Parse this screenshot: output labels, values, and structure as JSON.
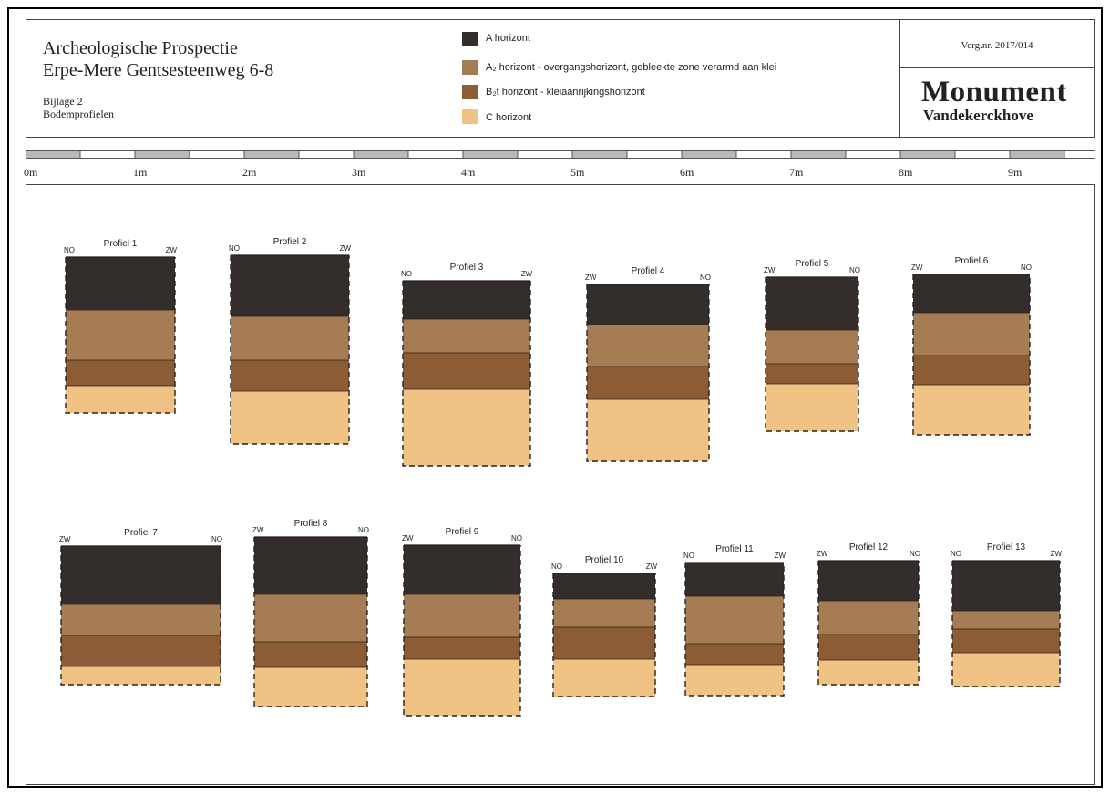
{
  "header": {
    "title_line1": "Archeologische Prospectie",
    "title_line2": "Erpe-Mere Gentsesteenweg 6-8",
    "bijlage": "Bijlage 2",
    "subtitle": "Bodemprofielen",
    "verg_nr": "Verg.nr. 2017/014",
    "logo_line1": "Monument",
    "logo_line2": "Vandekerckhove"
  },
  "legend": [
    {
      "label": "A horizont",
      "color": "#332e2c"
    },
    {
      "label": "A₂ horizont - overgangshorizont, gebleekte zone verarmd aan klei",
      "color": "#a67c55"
    },
    {
      "label": "B₂t horizont - kleiaanrijkingshorizont",
      "color": "#8b5c36"
    },
    {
      "label": "C horizont",
      "color": "#f0c283"
    }
  ],
  "scale_labels": [
    "0m",
    "1m",
    "2m",
    "3m",
    "4m",
    "5m",
    "6m",
    "7m",
    "8m",
    "9m"
  ],
  "profiles": [
    {
      "name": "Profiel 1",
      "left_label": "NO",
      "right_label": "ZW",
      "layers": [
        [
          "#332e2c",
          58
        ],
        [
          "#a67c55",
          55
        ],
        [
          "#8b5c36",
          28
        ],
        [
          "#f0c283",
          30
        ]
      ]
    },
    {
      "name": "Profiel 2",
      "left_label": "NO",
      "right_label": "ZW",
      "layers": [
        [
          "#332e2c",
          67
        ],
        [
          "#a67c55",
          48
        ],
        [
          "#8b5c36",
          34
        ],
        [
          "#f0c283",
          58
        ]
      ]
    },
    {
      "name": "Profiel 3",
      "left_label": "NO",
      "right_label": "ZW",
      "layers": [
        [
          "#332e2c",
          42
        ],
        [
          "#a67c55",
          37
        ],
        [
          "#8b5c36",
          40
        ],
        [
          "#f0c283",
          84
        ]
      ]
    },
    {
      "name": "Profiel 4",
      "left_label": "ZW",
      "right_label": "NO",
      "layers": [
        [
          "#332e2c",
          44
        ],
        [
          "#a67c55",
          46
        ],
        [
          "#8b5c36",
          36
        ],
        [
          "#f0c283",
          68
        ]
      ]
    },
    {
      "name": "Profiel 5",
      "left_label": "ZW",
      "right_label": "NO",
      "layers": [
        [
          "#332e2c",
          58
        ],
        [
          "#a67c55",
          37
        ],
        [
          "#8b5c36",
          22
        ],
        [
          "#f0c283",
          52
        ]
      ]
    },
    {
      "name": "Profiel 6",
      "left_label": "ZW",
      "right_label": "NO",
      "layers": [
        [
          "#332e2c",
          42
        ],
        [
          "#a67c55",
          47
        ],
        [
          "#8b5c36",
          32
        ],
        [
          "#f0c283",
          55
        ]
      ]
    },
    {
      "name": "Profiel 7",
      "left_label": "ZW",
      "right_label": "NO",
      "layers": [
        [
          "#332e2c",
          64
        ],
        [
          "#a67c55",
          34
        ],
        [
          "#8b5c36",
          34
        ],
        [
          "#f0c283",
          20
        ]
      ]
    },
    {
      "name": "Profiel 8",
      "left_label": "ZW",
      "right_label": "NO",
      "layers": [
        [
          "#332e2c",
          63
        ],
        [
          "#a67c55",
          52
        ],
        [
          "#8b5c36",
          28
        ],
        [
          "#f0c283",
          43
        ]
      ]
    },
    {
      "name": "Profiel 9",
      "left_label": "ZW",
      "right_label": "NO",
      "layers": [
        [
          "#332e2c",
          54
        ],
        [
          "#a67c55",
          47
        ],
        [
          "#8b5c36",
          24
        ],
        [
          "#f0c283",
          62
        ]
      ]
    },
    {
      "name": "Profiel 10",
      "left_label": "NO",
      "right_label": "ZW",
      "layers": [
        [
          "#332e2c",
          28
        ],
        [
          "#a67c55",
          31
        ],
        [
          "#8b5c36",
          35
        ],
        [
          "#f0c283",
          41
        ]
      ]
    },
    {
      "name": "Profiel 11",
      "left_label": "NO",
      "right_label": "ZW",
      "layers": [
        [
          "#332e2c",
          37
        ],
        [
          "#a67c55",
          52
        ],
        [
          "#8b5c36",
          23
        ],
        [
          "#f0c283",
          34
        ]
      ]
    },
    {
      "name": "Profiel 12",
      "left_label": "ZW",
      "right_label": "NO",
      "layers": [
        [
          "#332e2c",
          44
        ],
        [
          "#a67c55",
          37
        ],
        [
          "#8b5c36",
          28
        ],
        [
          "#f0c283",
          27
        ]
      ]
    },
    {
      "name": "Profiel 13",
      "left_label": "NO",
      "right_label": "ZW",
      "layers": [
        [
          "#332e2c",
          55
        ],
        [
          "#a67c55",
          20
        ],
        [
          "#8b5c36",
          26
        ],
        [
          "#f0c283",
          37
        ]
      ]
    }
  ]
}
